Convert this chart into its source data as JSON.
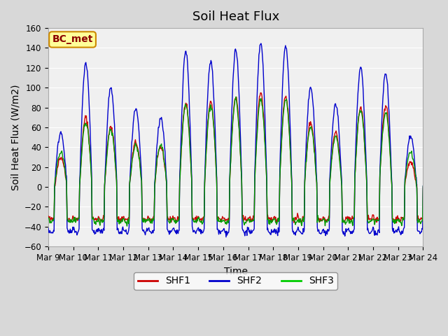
{
  "title": "Soil Heat Flux",
  "ylabel": "Soil Heat Flux (W/m2)",
  "xlabel": "Time",
  "ylim": [
    -60,
    160
  ],
  "yticks": [
    -60,
    -40,
    -20,
    0,
    20,
    40,
    60,
    80,
    100,
    120,
    140,
    160
  ],
  "xticklabels": [
    "Mar 9",
    "Mar 10",
    "Mar 11",
    "Mar 12",
    "Mar 13",
    "Mar 14",
    "Mar 15",
    "Mar 16",
    "Mar 17",
    "Mar 18",
    "Mar 19",
    "Mar 20",
    "Mar 21",
    "Mar 22",
    "Mar 23",
    "Mar 24"
  ],
  "legend_labels": [
    "SHF1",
    "SHF2",
    "SHF3"
  ],
  "legend_colors": [
    "#cc0000",
    "#0000cc",
    "#00cc00"
  ],
  "line_colors": [
    "#cc0000",
    "#0000cc",
    "#009900"
  ],
  "annotation_text": "BC_met",
  "annotation_bg": "#ffff99",
  "annotation_border": "#cc8800",
  "bg_color": "#e8e8e8",
  "plot_bg": "#f0f0f0",
  "grid_color": "#ffffff",
  "title_fontsize": 13,
  "label_fontsize": 10,
  "tick_fontsize": 8.5
}
